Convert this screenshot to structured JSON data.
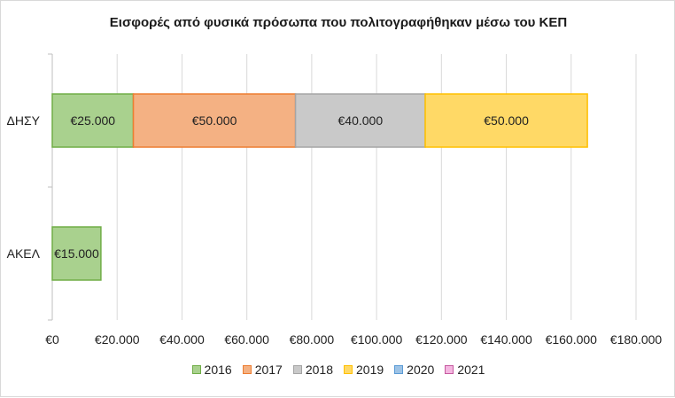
{
  "chart_data": {
    "type": "bar",
    "orientation": "horizontal",
    "stacked": true,
    "title": "Εισφορές από φυσικά πρόσωπα που πολιτογραφήθηκαν μέσω του ΚΕΠ",
    "categories": [
      "ΔΗΣΥ",
      "ΑΚΕΛ"
    ],
    "series": [
      {
        "name": "2016",
        "values": [
          25000,
          15000
        ],
        "labels": [
          "€25.000",
          "€15.000"
        ],
        "color": "#a9d18e",
        "stroke": "#70ad47"
      },
      {
        "name": "2017",
        "values": [
          50000,
          0
        ],
        "labels": [
          "€50.000",
          ""
        ],
        "color": "#f4b183",
        "stroke": "#ed7d31"
      },
      {
        "name": "2018",
        "values": [
          40000,
          0
        ],
        "labels": [
          "€40.000",
          ""
        ],
        "color": "#c9c9c9",
        "stroke": "#a5a5a5"
      },
      {
        "name": "2019",
        "values": [
          50000,
          0
        ],
        "labels": [
          "€50.000",
          ""
        ],
        "color": "#ffd966",
        "stroke": "#ffc000"
      },
      {
        "name": "2020",
        "values": [
          0,
          0
        ],
        "labels": [
          "",
          ""
        ],
        "color": "#9dc3e6",
        "stroke": "#5b9bd5"
      },
      {
        "name": "2021",
        "values": [
          0,
          0
        ],
        "labels": [
          "",
          ""
        ],
        "color": "#f4b6e0",
        "stroke": "#c55a9f"
      }
    ],
    "xlim": [
      0,
      180000
    ],
    "xticks": [
      0,
      20000,
      40000,
      60000,
      80000,
      100000,
      120000,
      140000,
      160000,
      180000
    ],
    "xtick_labels": [
      "€0",
      "€20.000",
      "€40.000",
      "€60.000",
      "€80.000",
      "€100.000",
      "€120.000",
      "€140.000",
      "€160.000",
      "€180.000"
    ],
    "grid": true,
    "legend_position": "bottom"
  }
}
